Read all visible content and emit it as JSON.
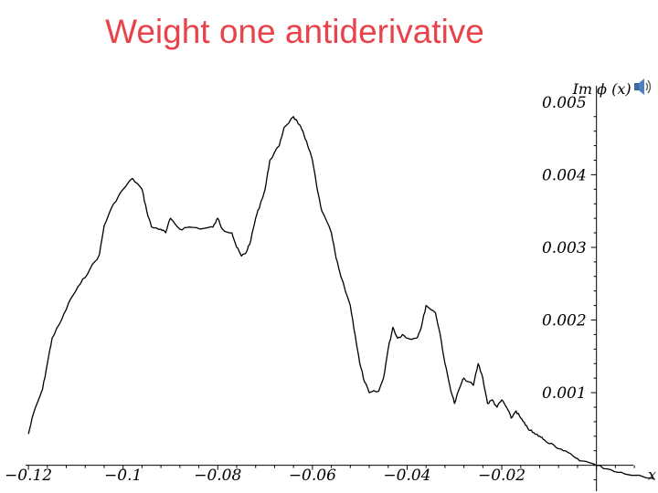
{
  "slide": {
    "title": "Weight one antiderivative",
    "accent_color": "#e8424a",
    "audio_icon": "speaker-icon"
  },
  "chart_data": {
    "type": "line",
    "title": "",
    "xlabel": "x",
    "ylabel": "Im ϕ (x)",
    "xlim": [
      -0.126,
      0.013
    ],
    "ylim": [
      -0.00013,
      0.0054
    ],
    "grid": false,
    "x_ticks": [
      -0.12,
      -0.1,
      -0.08,
      -0.06,
      -0.04,
      -0.02
    ],
    "x_tick_labels": [
      "−0.12",
      "−0.1",
      "−0.08",
      "−0.06",
      "−0.04",
      "−0.02"
    ],
    "y_ticks": [
      0.001,
      0.002,
      0.003,
      0.004,
      0.005
    ],
    "y_tick_labels": [
      "0.001",
      "0.002",
      "0.003",
      "0.004",
      "0.005"
    ],
    "series": [
      {
        "color": "#000000",
        "points": [
          [
            -0.12,
            0.00043
          ],
          [
            -0.119,
            0.0007
          ],
          [
            -0.117,
            0.00105
          ],
          [
            -0.116,
            0.0014
          ],
          [
            -0.115,
            0.00175
          ],
          [
            -0.113,
            0.002
          ],
          [
            -0.111,
            0.0023
          ],
          [
            -0.109,
            0.0025
          ],
          [
            -0.107,
            0.0027
          ],
          [
            -0.105,
            0.0029
          ],
          [
            -0.104,
            0.0033
          ],
          [
            -0.102,
            0.0036
          ],
          [
            -0.1,
            0.0038
          ],
          [
            -0.098,
            0.00395
          ],
          [
            -0.096,
            0.0038
          ],
          [
            -0.095,
            0.0035
          ],
          [
            -0.094,
            0.00328
          ],
          [
            -0.092,
            0.00325
          ],
          [
            -0.091,
            0.0032
          ],
          [
            -0.09,
            0.0034
          ],
          [
            -0.088,
            0.00325
          ],
          [
            -0.086,
            0.00328
          ],
          [
            -0.083,
            0.00326
          ],
          [
            -0.081,
            0.00328
          ],
          [
            -0.08,
            0.0034
          ],
          [
            -0.079,
            0.00325
          ],
          [
            -0.077,
            0.0032
          ],
          [
            -0.076,
            0.003
          ],
          [
            -0.075,
            0.00288
          ],
          [
            -0.074,
            0.00293
          ],
          [
            -0.073,
            0.0031
          ],
          [
            -0.072,
            0.0034
          ],
          [
            -0.071,
            0.0036
          ],
          [
            -0.07,
            0.0038
          ],
          [
            -0.069,
            0.0042
          ],
          [
            -0.067,
            0.0044
          ],
          [
            -0.066,
            0.00465
          ],
          [
            -0.064,
            0.0048
          ],
          [
            -0.063,
            0.0047
          ],
          [
            -0.062,
            0.0046
          ],
          [
            -0.061,
            0.0044
          ],
          [
            -0.06,
            0.0042
          ],
          [
            -0.059,
            0.0038
          ],
          [
            -0.058,
            0.0035
          ],
          [
            -0.056,
            0.0032
          ],
          [
            -0.055,
            0.00285
          ],
          [
            -0.054,
            0.0026
          ],
          [
            -0.052,
            0.0022
          ],
          [
            -0.051,
            0.0018
          ],
          [
            -0.05,
            0.0014
          ],
          [
            -0.049,
            0.00115
          ],
          [
            -0.048,
            0.001
          ],
          [
            -0.046,
            0.00102
          ],
          [
            -0.045,
            0.0012
          ],
          [
            -0.044,
            0.0016
          ],
          [
            -0.043,
            0.0019
          ],
          [
            -0.042,
            0.00175
          ],
          [
            -0.041,
            0.0018
          ],
          [
            -0.04,
            0.00175
          ],
          [
            -0.038,
            0.00175
          ],
          [
            -0.037,
            0.0019
          ],
          [
            -0.036,
            0.0022
          ],
          [
            -0.034,
            0.0021
          ],
          [
            -0.033,
            0.0018
          ],
          [
            -0.032,
            0.0014
          ],
          [
            -0.031,
            0.0011
          ],
          [
            -0.03,
            0.00085
          ],
          [
            -0.029,
            0.00105
          ],
          [
            -0.028,
            0.0012
          ],
          [
            -0.026,
            0.0011
          ],
          [
            -0.025,
            0.0014
          ],
          [
            -0.024,
            0.0012
          ],
          [
            -0.023,
            0.00085
          ],
          [
            -0.022,
            0.0009
          ],
          [
            -0.021,
            0.0008
          ],
          [
            -0.02,
            0.0009
          ],
          [
            -0.019,
            0.0008
          ],
          [
            -0.018,
            0.00065
          ],
          [
            -0.017,
            0.00075
          ],
          [
            -0.016,
            0.00065
          ],
          [
            -0.015,
            0.00055
          ],
          [
            -0.014,
            0.00048
          ],
          [
            -0.013,
            0.00043
          ],
          [
            -0.012,
            0.0004
          ],
          [
            -0.011,
            0.00035
          ],
          [
            -0.009,
            0.00028
          ],
          [
            -0.007,
            0.0002
          ],
          [
            -0.005,
            0.00013
          ],
          [
            -0.003,
            6e-05
          ],
          [
            0.0,
            0.0
          ],
          [
            0.003,
            -6e-05
          ],
          [
            0.006,
            -0.00012
          ],
          [
            0.012,
            -0.00018
          ]
        ]
      }
    ]
  }
}
